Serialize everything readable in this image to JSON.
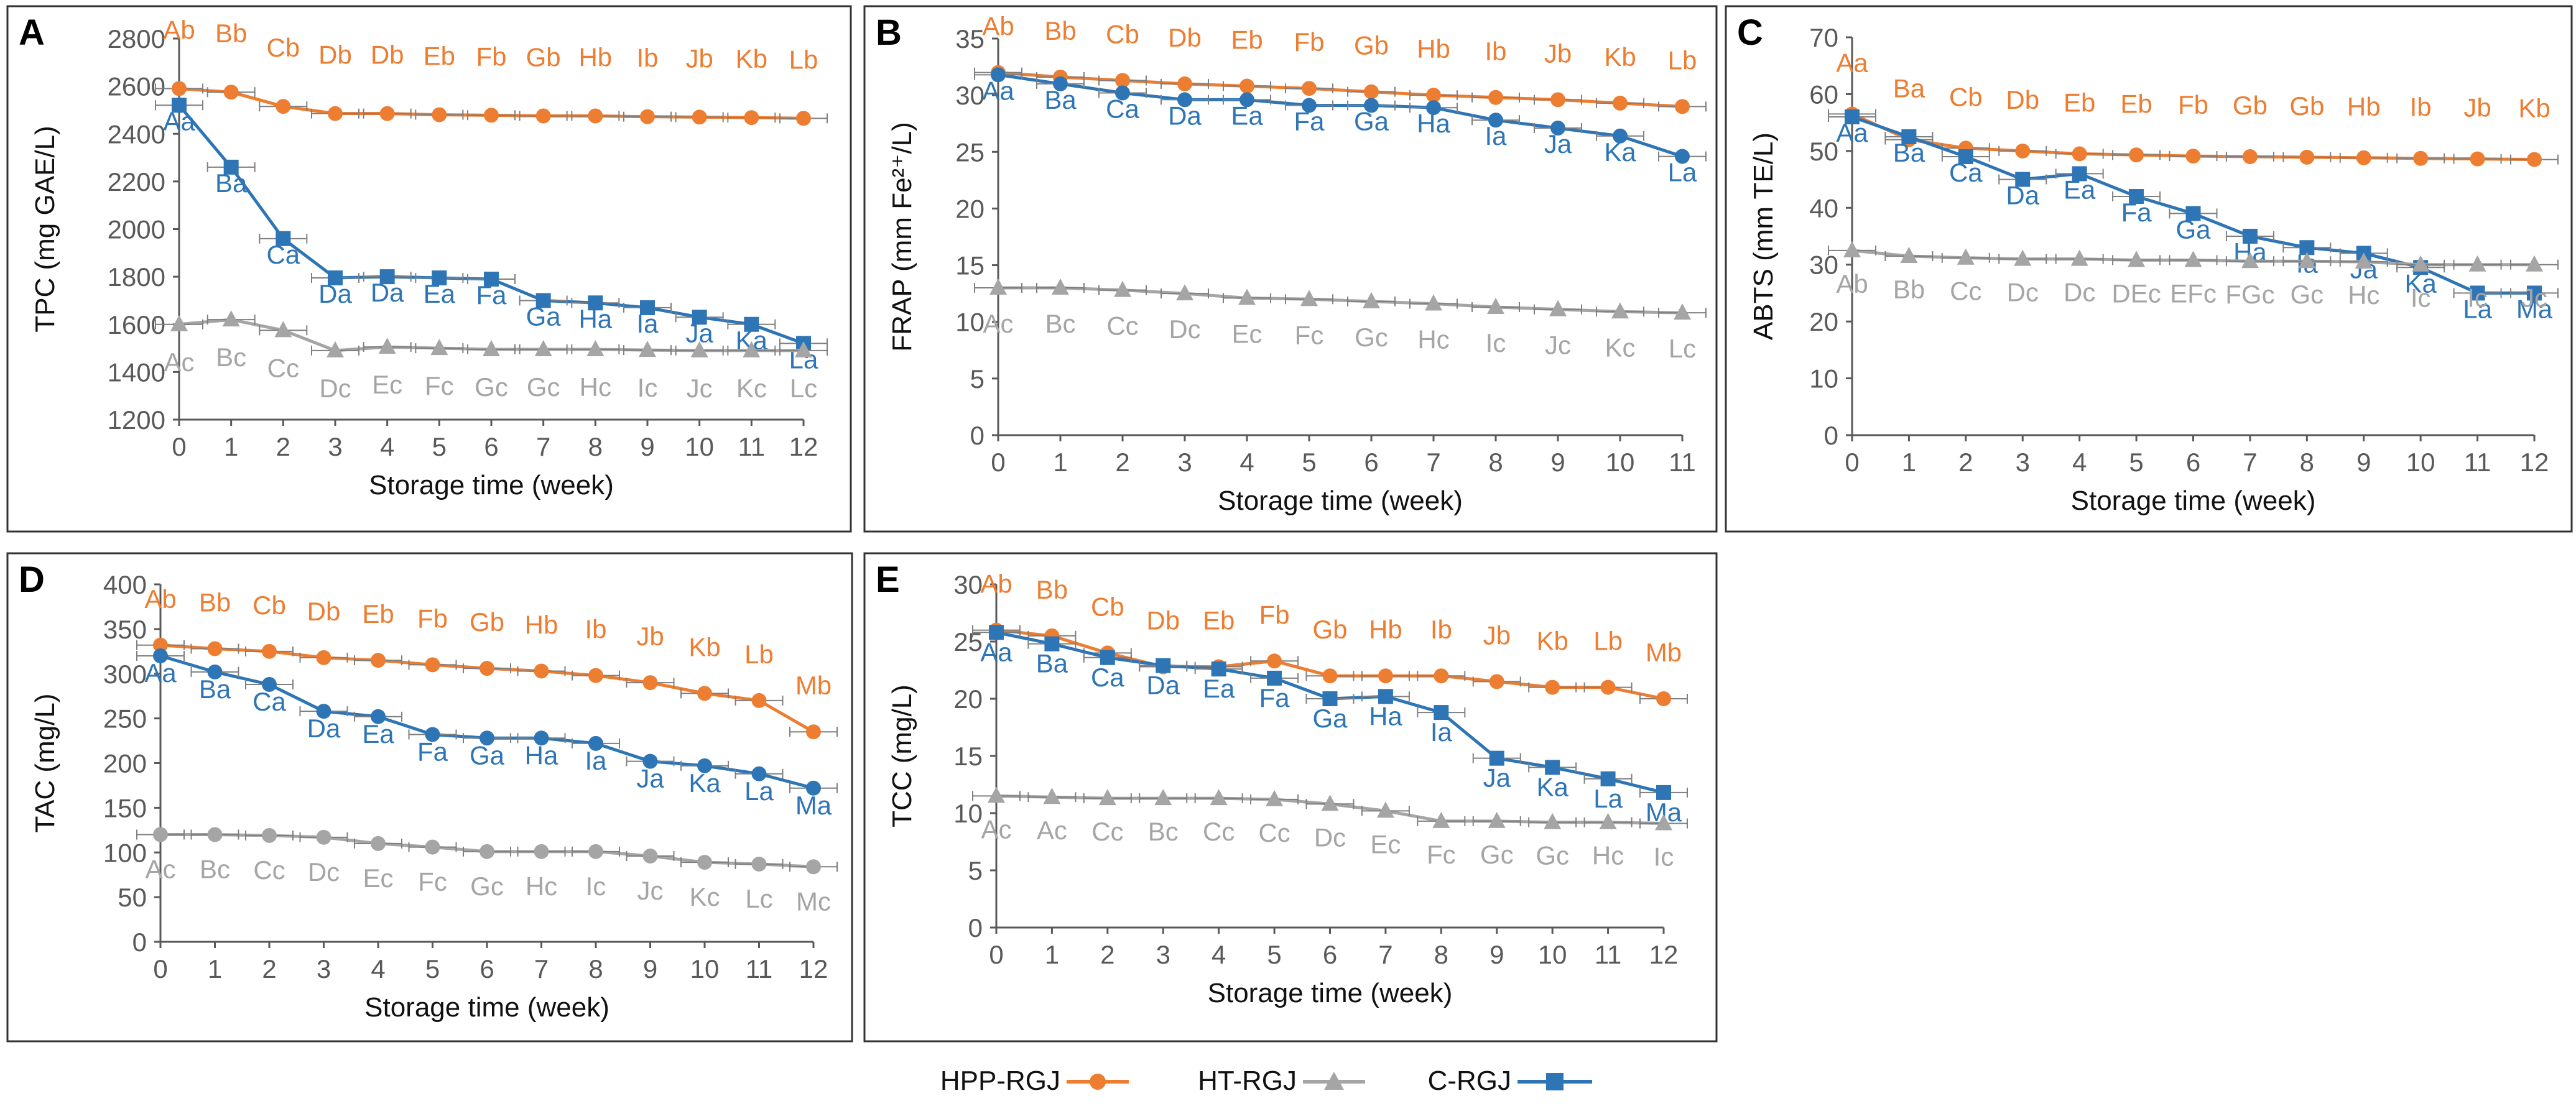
{
  "colors": {
    "hpp": "#ED7D31",
    "ht": "#A5A5A5",
    "c": "#2E75B6",
    "axis": "#595959",
    "frame": "#333333"
  },
  "legend": {
    "hpp": "HPP-RGJ",
    "ht": "HT-RGJ",
    "c": "C-RGJ"
  },
  "chart_data": [
    {
      "type": "line",
      "panel": "A",
      "xlabel": "Storage time (week)",
      "ylabel": "TPC (mg GAE/L)",
      "x": [
        0,
        1,
        2,
        3,
        4,
        5,
        6,
        7,
        8,
        9,
        10,
        11,
        12
      ],
      "ylim": [
        1200,
        2800
      ],
      "yticks": [
        1200,
        1400,
        1600,
        1800,
        2000,
        2200,
        2400,
        2600,
        2800
      ],
      "series": [
        {
          "key": "hpp",
          "name": "HPP-RGJ",
          "marker": "circle",
          "values": [
            2590,
            2575,
            2515,
            2485,
            2485,
            2480,
            2478,
            2475,
            2475,
            2472,
            2470,
            2468,
            2465
          ],
          "labels": [
            "Ab",
            "Bb",
            "Cb",
            "Db",
            "Db",
            "Eb",
            "Fb",
            "Gb",
            "Hb",
            "Ib",
            "Jb",
            "Kb",
            "Lb"
          ]
        },
        {
          "key": "c",
          "name": "C-RGJ",
          "marker": "square",
          "values": [
            2520,
            2260,
            1960,
            1795,
            1800,
            1795,
            1790,
            1700,
            1690,
            1670,
            1630,
            1600,
            1520
          ],
          "labels": [
            "Aa",
            "Ba",
            "Ca",
            "Da",
            "Da",
            "Ea",
            "Fa",
            "Ga",
            "Ha",
            "Ia",
            "Ja",
            "Ka",
            "La"
          ]
        },
        {
          "key": "ht",
          "name": "HT-RGJ",
          "marker": "triangle",
          "values": [
            1600,
            1620,
            1575,
            1490,
            1505,
            1500,
            1495,
            1495,
            1495,
            1492,
            1490,
            1490,
            1490
          ],
          "labels": [
            "Ac",
            "Bc",
            "Cc",
            "Dc",
            "Ec",
            "Fc",
            "Gc",
            "Gc",
            "Hc",
            "Ic",
            "Jc",
            "Kc",
            "Lc"
          ]
        }
      ]
    },
    {
      "type": "line",
      "panel": "B",
      "xlabel": "Storage time (week)",
      "ylabel": "FRAP (mm Fe²⁺/L)",
      "x": [
        0,
        1,
        2,
        3,
        4,
        5,
        6,
        7,
        8,
        9,
        10,
        11
      ],
      "ylim": [
        0,
        35
      ],
      "yticks": [
        0,
        5,
        10,
        15,
        20,
        25,
        30,
        35
      ],
      "series": [
        {
          "key": "hpp",
          "name": "HPP-RGJ",
          "marker": "circle",
          "values": [
            32,
            31.6,
            31.3,
            31,
            30.8,
            30.6,
            30.3,
            30,
            29.8,
            29.6,
            29.3,
            29
          ],
          "labels": [
            "Ab",
            "Bb",
            "Cb",
            "Db",
            "Eb",
            "Fb",
            "Gb",
            "Hb",
            "Ib",
            "Jb",
            "Kb",
            "Lb"
          ]
        },
        {
          "key": "c",
          "name": "C-RGJ",
          "marker": "circle",
          "values": [
            31.8,
            31,
            30.2,
            29.6,
            29.6,
            29.1,
            29.1,
            28.9,
            27.8,
            27.1,
            26.4,
            24.6
          ],
          "labels": [
            "Aa",
            "Ba",
            "Ca",
            "Da",
            "Ea",
            "Fa",
            "Ga",
            "Ha",
            "Ia",
            "Ja",
            "Ka",
            "La"
          ]
        },
        {
          "key": "ht",
          "name": "HT-RGJ",
          "marker": "triangle",
          "values": [
            13,
            13,
            12.8,
            12.5,
            12.1,
            12,
            11.8,
            11.6,
            11.3,
            11.1,
            10.9,
            10.8
          ],
          "labels": [
            "Ac",
            "Bc",
            "Cc",
            "Dc",
            "Ec",
            "Fc",
            "Gc",
            "Hc",
            "Ic",
            "Jc",
            "Kc",
            "Lc"
          ]
        }
      ]
    },
    {
      "type": "line",
      "panel": "C",
      "xlabel": "Storage time (week)",
      "ylabel": "ABTS (mm TE/L)",
      "x": [
        0,
        1,
        2,
        3,
        4,
        5,
        6,
        7,
        8,
        9,
        10,
        11,
        12
      ],
      "ylim": [
        0,
        70
      ],
      "yticks": [
        0,
        10,
        20,
        30,
        40,
        50,
        60,
        70
      ],
      "series": [
        {
          "key": "hpp",
          "name": "HPP-RGJ",
          "marker": "circle",
          "values": [
            56.5,
            52,
            50.5,
            50,
            49.5,
            49.3,
            49.1,
            49,
            48.9,
            48.8,
            48.7,
            48.6,
            48.5
          ],
          "labels": [
            "Aa",
            "Ba",
            "Cb",
            "Db",
            "Eb",
            "Eb",
            "Fb",
            "Gb",
            "Gb",
            "Hb",
            "Ib",
            "Jb",
            "Kb"
          ]
        },
        {
          "key": "c",
          "name": "C-RGJ",
          "marker": "square",
          "values": [
            56,
            52.5,
            49,
            45,
            46,
            42,
            39,
            35,
            33,
            32,
            29.5,
            25,
            25
          ],
          "labels": [
            "Aa",
            "Ba",
            "Ca",
            "Da",
            "Ea",
            "Fa",
            "Ga",
            "Ha",
            "Ia",
            "Ja",
            "Ka",
            "La",
            "Ma"
          ]
        },
        {
          "key": "ht",
          "name": "HT-RGJ",
          "marker": "triangle",
          "values": [
            32.5,
            31.5,
            31.2,
            31,
            31,
            30.8,
            30.8,
            30.6,
            30.6,
            30.5,
            30,
            30,
            30
          ],
          "labels": [
            "Ab",
            "Bb",
            "Cc",
            "Dc",
            "Dc",
            "DEc",
            "EFc",
            "FGc",
            "Gc",
            "Hc",
            "Ic",
            "Ic",
            "Jc"
          ]
        }
      ]
    },
    {
      "type": "line",
      "panel": "D",
      "xlabel": "Storage time (week)",
      "ylabel": "TAC (mg/L)",
      "x": [
        0,
        1,
        2,
        3,
        4,
        5,
        6,
        7,
        8,
        9,
        10,
        11,
        12
      ],
      "ylim": [
        0,
        400
      ],
      "yticks": [
        0,
        50,
        100,
        150,
        200,
        250,
        300,
        350,
        400
      ],
      "series": [
        {
          "key": "hpp",
          "name": "HPP-RGJ",
          "marker": "circle",
          "values": [
            332,
            328,
            325,
            318,
            315,
            310,
            306,
            303,
            298,
            290,
            278,
            270,
            235
          ],
          "labels": [
            "Ab",
            "Bb",
            "Cb",
            "Db",
            "Eb",
            "Fb",
            "Gb",
            "Hb",
            "Ib",
            "Jb",
            "Kb",
            "Lb",
            "Mb"
          ]
        },
        {
          "key": "c",
          "name": "C-RGJ",
          "marker": "circle",
          "values": [
            320,
            302,
            288,
            258,
            252,
            232,
            228,
            228,
            222,
            202,
            197,
            188,
            172
          ],
          "labels": [
            "Aa",
            "Ba",
            "Ca",
            "Da",
            "Ea",
            "Fa",
            "Ga",
            "Ha",
            "Ia",
            "Ja",
            "Ka",
            "La",
            "Ma"
          ]
        },
        {
          "key": "ht",
          "name": "HT-RGJ",
          "marker": "circle",
          "values": [
            120,
            120,
            119,
            117,
            110,
            106,
            101,
            101,
            101,
            96,
            89,
            87,
            84
          ],
          "labels": [
            "Ac",
            "Bc",
            "Cc",
            "Dc",
            "Ec",
            "Fc",
            "Gc",
            "Hc",
            "Ic",
            "Jc",
            "Kc",
            "Lc",
            "Mc"
          ]
        }
      ]
    },
    {
      "type": "line",
      "panel": "E",
      "xlabel": "Storage time (week)",
      "ylabel": "TCC (mg/L)",
      "x": [
        0,
        1,
        2,
        3,
        4,
        5,
        6,
        7,
        8,
        9,
        10,
        11,
        12
      ],
      "ylim": [
        0,
        30
      ],
      "yticks": [
        0,
        5,
        10,
        15,
        20,
        25,
        30
      ],
      "series": [
        {
          "key": "hpp",
          "name": "HPP-RGJ",
          "marker": "circle",
          "values": [
            26,
            25.5,
            24,
            22.8,
            22.8,
            23.3,
            22,
            22,
            22,
            21.5,
            21,
            21,
            20
          ],
          "labels": [
            "Ab",
            "Bb",
            "Cb",
            "Db",
            "Eb",
            "Fb",
            "Gb",
            "Hb",
            "Ib",
            "Jb",
            "Kb",
            "Lb",
            "Mb"
          ]
        },
        {
          "key": "c",
          "name": "C-RGJ",
          "marker": "square",
          "values": [
            25.8,
            24.8,
            23.6,
            22.9,
            22.6,
            21.8,
            20,
            20.2,
            18.8,
            14.8,
            14,
            13,
            11.8
          ],
          "labels": [
            "Aa",
            "Ba",
            "Ca",
            "Da",
            "Ea",
            "Fa",
            "Ga",
            "Ha",
            "Ia",
            "Ja",
            "Ka",
            "La",
            "Ma"
          ]
        },
        {
          "key": "ht",
          "name": "HT-RGJ",
          "marker": "triangle",
          "values": [
            11.5,
            11.4,
            11.3,
            11.3,
            11.3,
            11.2,
            10.8,
            10.2,
            9.3,
            9.3,
            9.2,
            9.2,
            9.1
          ],
          "labels": [
            "Ac",
            "Ac",
            "Cc",
            "Bc",
            "Cc",
            "Cc",
            "Dc",
            "Ec",
            "Fc",
            "Gc",
            "Gc",
            "Hc",
            "Ic"
          ]
        }
      ]
    }
  ]
}
